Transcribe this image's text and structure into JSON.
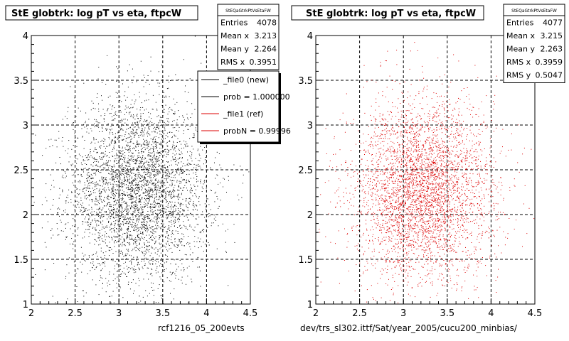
{
  "panels": [
    {
      "title": "StE globtrk: log pT vs eta, ftpcW",
      "stats": {
        "header": "StEQaGtrkPtVsEtaFW",
        "rows": [
          {
            "label": "Entries",
            "value": "4078"
          },
          {
            "label": "Mean x",
            "value": "3.213"
          },
          {
            "label": "Mean y",
            "value": "2.264"
          },
          {
            "label": "RMS x",
            "value": "0.3951"
          }
        ]
      },
      "legend": [
        {
          "label": "_file0 (new)",
          "color": "#000000"
        },
        {
          "label": "prob = 1.000000",
          "color": "#000000"
        },
        {
          "label": "_file1 (ref)",
          "color": "#dd0000"
        },
        {
          "label": "probN = 0.99996",
          "color": "#dd0000"
        }
      ],
      "footer": "rcf1216_05_200evts",
      "points_color": "#000000"
    },
    {
      "title": "StE globtrk: log pT vs eta, ftpcW",
      "stats": {
        "header": "StEQaGtrkPtVsEtaFW",
        "rows": [
          {
            "label": "Entries",
            "value": "4077"
          },
          {
            "label": "Mean x",
            "value": "3.215"
          },
          {
            "label": "Mean y",
            "value": "2.263"
          },
          {
            "label": "RMS x",
            "value": "0.3959"
          },
          {
            "label": "RMS y",
            "value": "0.5047"
          }
        ]
      },
      "footer": "dev/trs_sl302.ittf/Sat/year_2005/cucu200_minbias/",
      "points_color": "#dd0000"
    }
  ],
  "chart_data": [
    {
      "type": "scatter",
      "title": "StE globtrk: log pT vs eta, ftpcW",
      "xlim": [
        2,
        4.5
      ],
      "ylim": [
        1,
        4
      ],
      "xticks": [
        2,
        2.5,
        3,
        3.5,
        4,
        4.5
      ],
      "yticks": [
        1,
        1.5,
        2,
        2.5,
        3,
        3.5,
        4
      ],
      "grid": true,
      "entries": 4078,
      "mean_x": 3.213,
      "mean_y": 2.264,
      "rms_x": 0.3951,
      "xlabel": "",
      "ylabel": ""
    },
    {
      "type": "scatter",
      "title": "StE globtrk: log pT vs eta, ftpcW",
      "xlim": [
        2,
        4.5
      ],
      "ylim": [
        1,
        4
      ],
      "xticks": [
        2,
        2.5,
        3,
        3.5,
        4,
        4.5
      ],
      "yticks": [
        1,
        1.5,
        2,
        2.5,
        3,
        3.5,
        4
      ],
      "grid": true,
      "entries": 4077,
      "mean_x": 3.215,
      "mean_y": 2.263,
      "rms_x": 0.3959,
      "rms_y": 0.5047,
      "xlabel": "",
      "ylabel": ""
    }
  ]
}
